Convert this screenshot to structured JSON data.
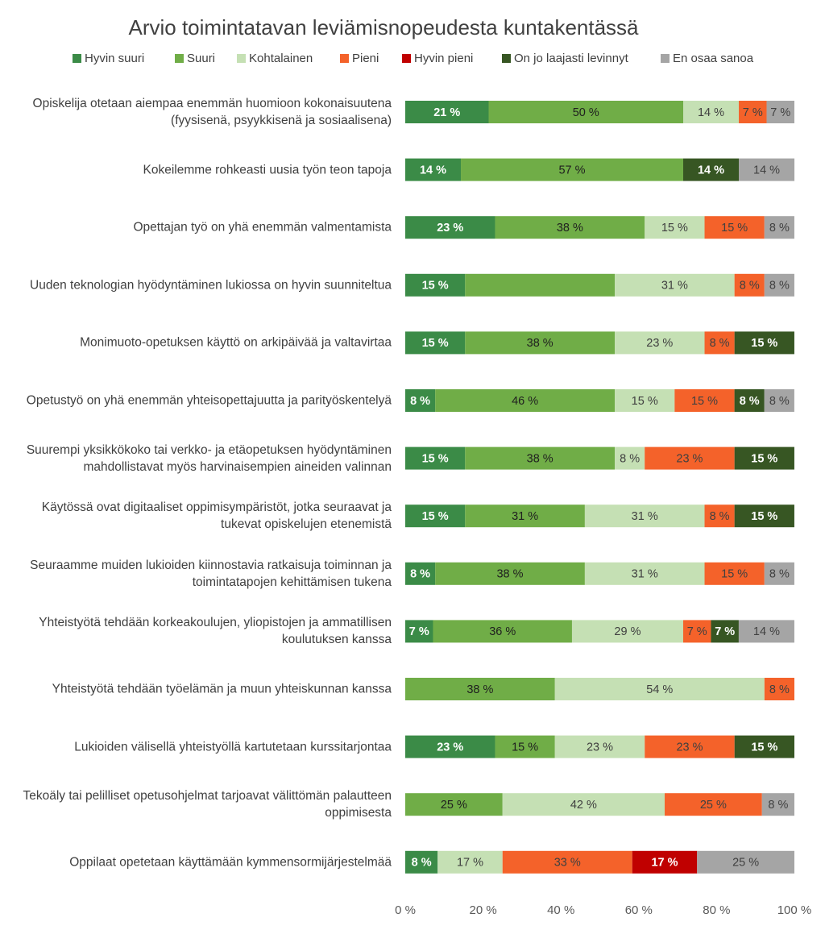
{
  "chart_data": {
    "type": "stacked_barh",
    "title": "Arvio toimintatavan leviämisnopeudesta kuntakentässä",
    "categories": [
      "Opiskelija otetaan aiempaa enemmän huomioon kokonaisuutena (fyysisenä, psyykkisenä ja sosiaalisena)",
      "Kokeilemme rohkeasti uusia työn teon tapoja",
      "Opettajan työ on yhä enemmän valmentamista",
      "Uuden teknologian hyödyntäminen lukiossa on hyvin suunniteltua",
      "Monimuoto-opetuksen käyttö on arkipäivää ja valtavirtaa",
      "Opetustyö on yhä enemmän yhteisopettajuutta ja parityöskentelyä",
      "Suurempi yksikkökoko tai verkko- ja etäopetuksen hyödyntäminen mahdollistavat myös harvinaisempien aineiden valinnan",
      "Käytössä ovat digitaaliset oppimisympäristöt, jotka seuraavat ja tukevat opiskelujen etenemistä",
      "Seuraamme muiden lukioiden kiinnostavia ratkaisuja toiminnan ja toimintatapojen kehittämisen tukena",
      "Yhteistyötä tehdään korkeakoulujen, yliopistojen ja ammatillisen koulutuksen kanssa",
      "Yhteistyötä tehdään työelämän ja muun yhteiskunnan kanssa",
      "Lukioiden välisellä yhteistyöllä kartutetaan kurssitarjontaa",
      "Tekoäly tai pelilliset opetusohjelmat tarjoavat välittömän palautteen oppimisesta",
      "Oppilaat opetetaan käyttämään kymmensormijärjestelmää"
    ],
    "series": [
      {
        "name": "Hyvin suuri",
        "color": "#3b8b47",
        "label_color": "#ffffff",
        "values": [
          21.43,
          14.29,
          23.08,
          15.38,
          15.38,
          7.69,
          15.38,
          15.38,
          7.69,
          7.14,
          null,
          23.08,
          null,
          8.33
        ],
        "value_labels": [
          "21 %",
          "14 %",
          "23 %",
          "15 %",
          "15 %",
          "8 %",
          "15 %",
          "15 %",
          "8 %",
          "7 %",
          null,
          "23 %",
          null,
          "8 %"
        ]
      },
      {
        "name": "Suuri",
        "color": "#70ad47",
        "label_color": "#1f1f1f",
        "values": [
          50,
          57.14,
          38.46,
          38.46,
          38.46,
          46.15,
          38.46,
          30.77,
          38.46,
          35.71,
          38.46,
          15.38,
          25,
          null
        ],
        "value_labels": [
          "50 %",
          "57 %",
          "38 %",
          null,
          "38 %",
          "46 %",
          "38 %",
          "31 %",
          "38 %",
          "36 %",
          "38 %",
          "15 %",
          "25 %",
          null
        ]
      },
      {
        "name": "Kohtalainen",
        "color": "#c5e0b4",
        "label_color": "#404040",
        "values": [
          14.29,
          null,
          15.38,
          30.77,
          23.08,
          15.38,
          7.69,
          30.77,
          30.77,
          28.57,
          53.85,
          23.08,
          41.67,
          16.67
        ],
        "value_labels": [
          "14 %",
          null,
          "15 %",
          "31 %",
          "23 %",
          "15 %",
          "8 %",
          "31 %",
          "31 %",
          "29 %",
          "54 %",
          "23 %",
          "42 %",
          "17 %"
        ]
      },
      {
        "name": "Pieni",
        "color": "#f4622a",
        "label_color": "#404040",
        "values": [
          7.14,
          null,
          15.38,
          7.69,
          7.69,
          15.38,
          23.08,
          7.69,
          15.38,
          7.14,
          7.69,
          23.08,
          25,
          33.33
        ],
        "value_labels": [
          "7 %",
          null,
          "15 %",
          "8 %",
          "8 %",
          "15 %",
          "23 %",
          "8 %",
          "15 %",
          "7 %",
          "8 %",
          "23 %",
          "25 %",
          "33 %"
        ]
      },
      {
        "name": "Hyvin pieni",
        "color": "#c00000",
        "label_color": "#ffffff",
        "values": [
          null,
          null,
          null,
          null,
          null,
          null,
          null,
          null,
          null,
          null,
          null,
          null,
          null,
          16.67
        ],
        "value_labels": [
          null,
          null,
          null,
          null,
          null,
          null,
          null,
          null,
          null,
          null,
          null,
          null,
          null,
          "17 %"
        ]
      },
      {
        "name": "On jo laajasti levinnyt",
        "color": "#375623",
        "label_color": "#ffffff",
        "values": [
          null,
          14.29,
          null,
          null,
          15.38,
          7.69,
          15.38,
          15.38,
          null,
          7.14,
          null,
          15.38,
          null,
          null
        ],
        "value_labels": [
          null,
          "14 %",
          null,
          null,
          "15 %",
          "8 %",
          "15 %",
          "15 %",
          null,
          "7 %",
          null,
          "15 %",
          null,
          null
        ]
      },
      {
        "name": "En osaa sanoa",
        "color": "#a5a5a5",
        "label_color": "#404040",
        "values": [
          7.14,
          14.29,
          7.69,
          7.69,
          null,
          7.69,
          null,
          null,
          7.69,
          14.29,
          null,
          null,
          8.33,
          25
        ],
        "value_labels": [
          "7 %",
          "14 %",
          "8 %",
          "8 %",
          null,
          "8 %",
          null,
          null,
          "8 %",
          "14 %",
          null,
          null,
          "8 %",
          "25 %"
        ]
      }
    ],
    "xlim": [
      0,
      100
    ],
    "xticks": [
      {
        "value": 0,
        "label": "0 %"
      },
      {
        "value": 20,
        "label": "20 %"
      },
      {
        "value": 40,
        "label": "40 %"
      },
      {
        "value": 60,
        "label": "60 %"
      },
      {
        "value": 80,
        "label": "80 %"
      },
      {
        "value": 100,
        "label": "100 %"
      }
    ],
    "grid": false,
    "legend": "top"
  }
}
